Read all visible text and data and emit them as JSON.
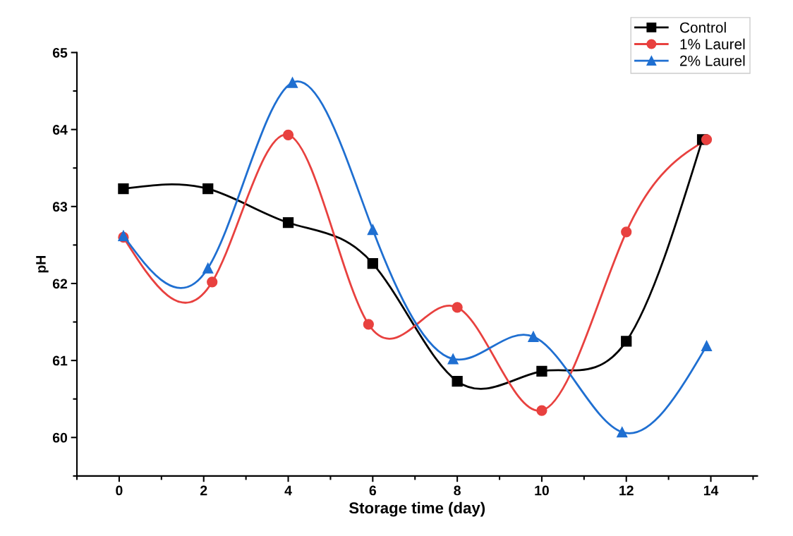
{
  "chart_data": {
    "type": "line",
    "xlabel": "Storage time (day)",
    "ylabel": "pH",
    "xlim": [
      -1,
      15.1
    ],
    "ylim": [
      59.5,
      65
    ],
    "xticks": [
      0,
      2,
      4,
      6,
      8,
      10,
      12,
      14
    ],
    "yticks": [
      60,
      61,
      62,
      63,
      64,
      65
    ],
    "grid": false,
    "legend": "top right",
    "line_style": "solid",
    "series": [
      {
        "name": "Control",
        "color": "#000000",
        "marker": "square",
        "x": [
          0.1,
          2.1,
          4.0,
          6.0,
          8.0,
          10.0,
          12.0,
          13.8
        ],
        "values": [
          63.23,
          63.23,
          62.79,
          62.26,
          60.73,
          60.86,
          61.25,
          63.87
        ]
      },
      {
        "name": "1% Laurel",
        "color": "#e8413f",
        "marker": "circle",
        "x": [
          0.1,
          2.2,
          4.0,
          5.9,
          8.0,
          10.0,
          12.0,
          13.9
        ],
        "values": [
          62.6,
          62.02,
          63.93,
          61.47,
          61.69,
          60.35,
          62.67,
          63.87
        ]
      },
      {
        "name": "2% Laurel",
        "color": "#1f6fd1",
        "marker": "triangle",
        "x": [
          0.1,
          2.1,
          4.1,
          6.0,
          7.9,
          9.8,
          11.9,
          13.9
        ],
        "values": [
          62.62,
          62.2,
          64.61,
          62.7,
          61.02,
          61.31,
          60.07,
          61.19
        ]
      }
    ]
  }
}
